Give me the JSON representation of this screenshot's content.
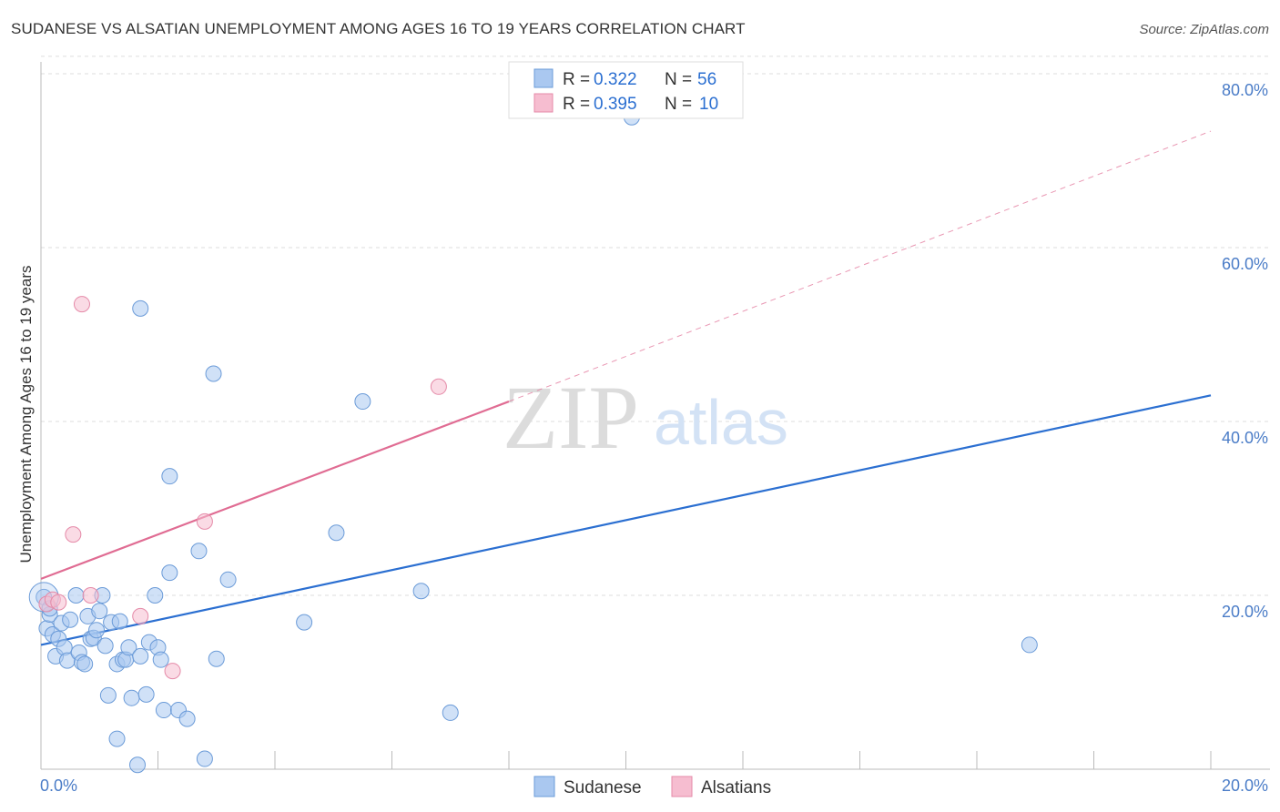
{
  "header": {
    "title": "SUDANESE VS ALSATIAN UNEMPLOYMENT AMONG AGES 16 TO 19 YEARS CORRELATION CHART",
    "source": "Source: ZipAtlas.com"
  },
  "watermark": {
    "zip": "ZIP",
    "atlas": "atlas"
  },
  "colors": {
    "blue_fill": "#aac8f0",
    "blue_stroke": "#6b9bd8",
    "blue_line": "#2b6fd1",
    "pink_fill": "#f6bdd0",
    "pink_stroke": "#e58aa8",
    "pink_line": "#e06c93",
    "tick_text": "#4a7cc7",
    "grid": "#dddddd"
  },
  "legend": {
    "rows": [
      {
        "r_label": "R = ",
        "r_value": "0.322",
        "n_label": "N = ",
        "n_value": "56"
      },
      {
        "r_label": "R = ",
        "r_value": "0.395",
        "n_label": "N = ",
        "n_value": "10"
      }
    ]
  },
  "chart_data": {
    "type": "scatter",
    "title": "SUDANESE VS ALSATIAN UNEMPLOYMENT AMONG AGES 16 TO 19 YEARS CORRELATION CHART",
    "xlabel": "",
    "ylabel": "Unemployment Among Ages 16 to 19 years",
    "xlim": [
      0,
      20
    ],
    "ylim": [
      0,
      82
    ],
    "x_tick_labels": [
      {
        "value": 0,
        "label": "0.0%"
      },
      {
        "value": 20,
        "label": "20.0%"
      }
    ],
    "y_tick_labels": [
      {
        "value": 20,
        "label": "20.0%"
      },
      {
        "value": 40,
        "label": "40.0%"
      },
      {
        "value": 60,
        "label": "60.0%"
      },
      {
        "value": 80,
        "label": "80.0%"
      }
    ],
    "x_minor_ticks": [
      0,
      2,
      4,
      6,
      8,
      10,
      12,
      14,
      16,
      18,
      20
    ],
    "grid": true,
    "legend_position": "top-center",
    "series": [
      {
        "name": "Sudanese",
        "color": "#aac8f0",
        "r": 0.322,
        "n": 56,
        "trend": {
          "x0": 0,
          "y0": 14.3,
          "x1": 20,
          "y1": 43.0
        },
        "points": [
          [
            0.05,
            19.8
          ],
          [
            0.1,
            16.2
          ],
          [
            0.15,
            17.8
          ],
          [
            0.2,
            15.5
          ],
          [
            0.25,
            13.0
          ],
          [
            0.3,
            15.0
          ],
          [
            0.35,
            16.8
          ],
          [
            0.4,
            14.0
          ],
          [
            0.45,
            12.5
          ],
          [
            0.5,
            17.2
          ],
          [
            0.6,
            20.0
          ],
          [
            0.65,
            13.4
          ],
          [
            0.7,
            12.3
          ],
          [
            0.75,
            12.1
          ],
          [
            0.8,
            17.6
          ],
          [
            0.85,
            15.0
          ],
          [
            0.9,
            15.1
          ],
          [
            0.95,
            16.0
          ],
          [
            1.0,
            18.2
          ],
          [
            1.05,
            20.0
          ],
          [
            1.1,
            14.2
          ],
          [
            1.2,
            16.9
          ],
          [
            1.3,
            12.1
          ],
          [
            1.35,
            17.0
          ],
          [
            1.4,
            12.6
          ],
          [
            1.45,
            12.6
          ],
          [
            1.5,
            14.0
          ],
          [
            1.55,
            8.2
          ],
          [
            1.7,
            13.0
          ],
          [
            1.8,
            8.6
          ],
          [
            1.85,
            14.6
          ],
          [
            1.95,
            20.0
          ],
          [
            2.0,
            14.0
          ],
          [
            2.05,
            12.6
          ],
          [
            2.1,
            6.8
          ],
          [
            2.2,
            22.6
          ],
          [
            2.35,
            6.8
          ],
          [
            2.5,
            5.8
          ],
          [
            2.7,
            25.1
          ],
          [
            2.8,
            1.2
          ],
          [
            3.0,
            12.7
          ],
          [
            3.2,
            21.8
          ],
          [
            1.15,
            8.5
          ],
          [
            1.3,
            3.5
          ],
          [
            1.65,
            0.5
          ],
          [
            1.7,
            53.0
          ],
          [
            2.2,
            33.7
          ],
          [
            2.95,
            45.5
          ],
          [
            4.5,
            16.9
          ],
          [
            5.05,
            27.2
          ],
          [
            5.5,
            42.3
          ],
          [
            6.5,
            20.5
          ],
          [
            7.0,
            6.5
          ],
          [
            10.1,
            75.0
          ],
          [
            16.9,
            14.3
          ],
          [
            0.15,
            18.5
          ]
        ]
      },
      {
        "name": "Alsatians",
        "color": "#f6bdd0",
        "r": 0.395,
        "n": 10,
        "trend": {
          "x0": 0,
          "y0": 21.9,
          "x1": 8.0,
          "y1": 42.3
        },
        "trend_extension": {
          "x0": 8.0,
          "y0": 42.3,
          "x1": 20,
          "y1": 73.4
        },
        "points": [
          [
            0.1,
            19.0
          ],
          [
            0.2,
            19.5
          ],
          [
            0.3,
            19.2
          ],
          [
            0.55,
            27.0
          ],
          [
            0.7,
            53.5
          ],
          [
            0.85,
            20.0
          ],
          [
            1.7,
            17.6
          ],
          [
            2.25,
            11.3
          ],
          [
            2.8,
            28.5
          ],
          [
            6.8,
            44.0
          ]
        ]
      }
    ]
  }
}
